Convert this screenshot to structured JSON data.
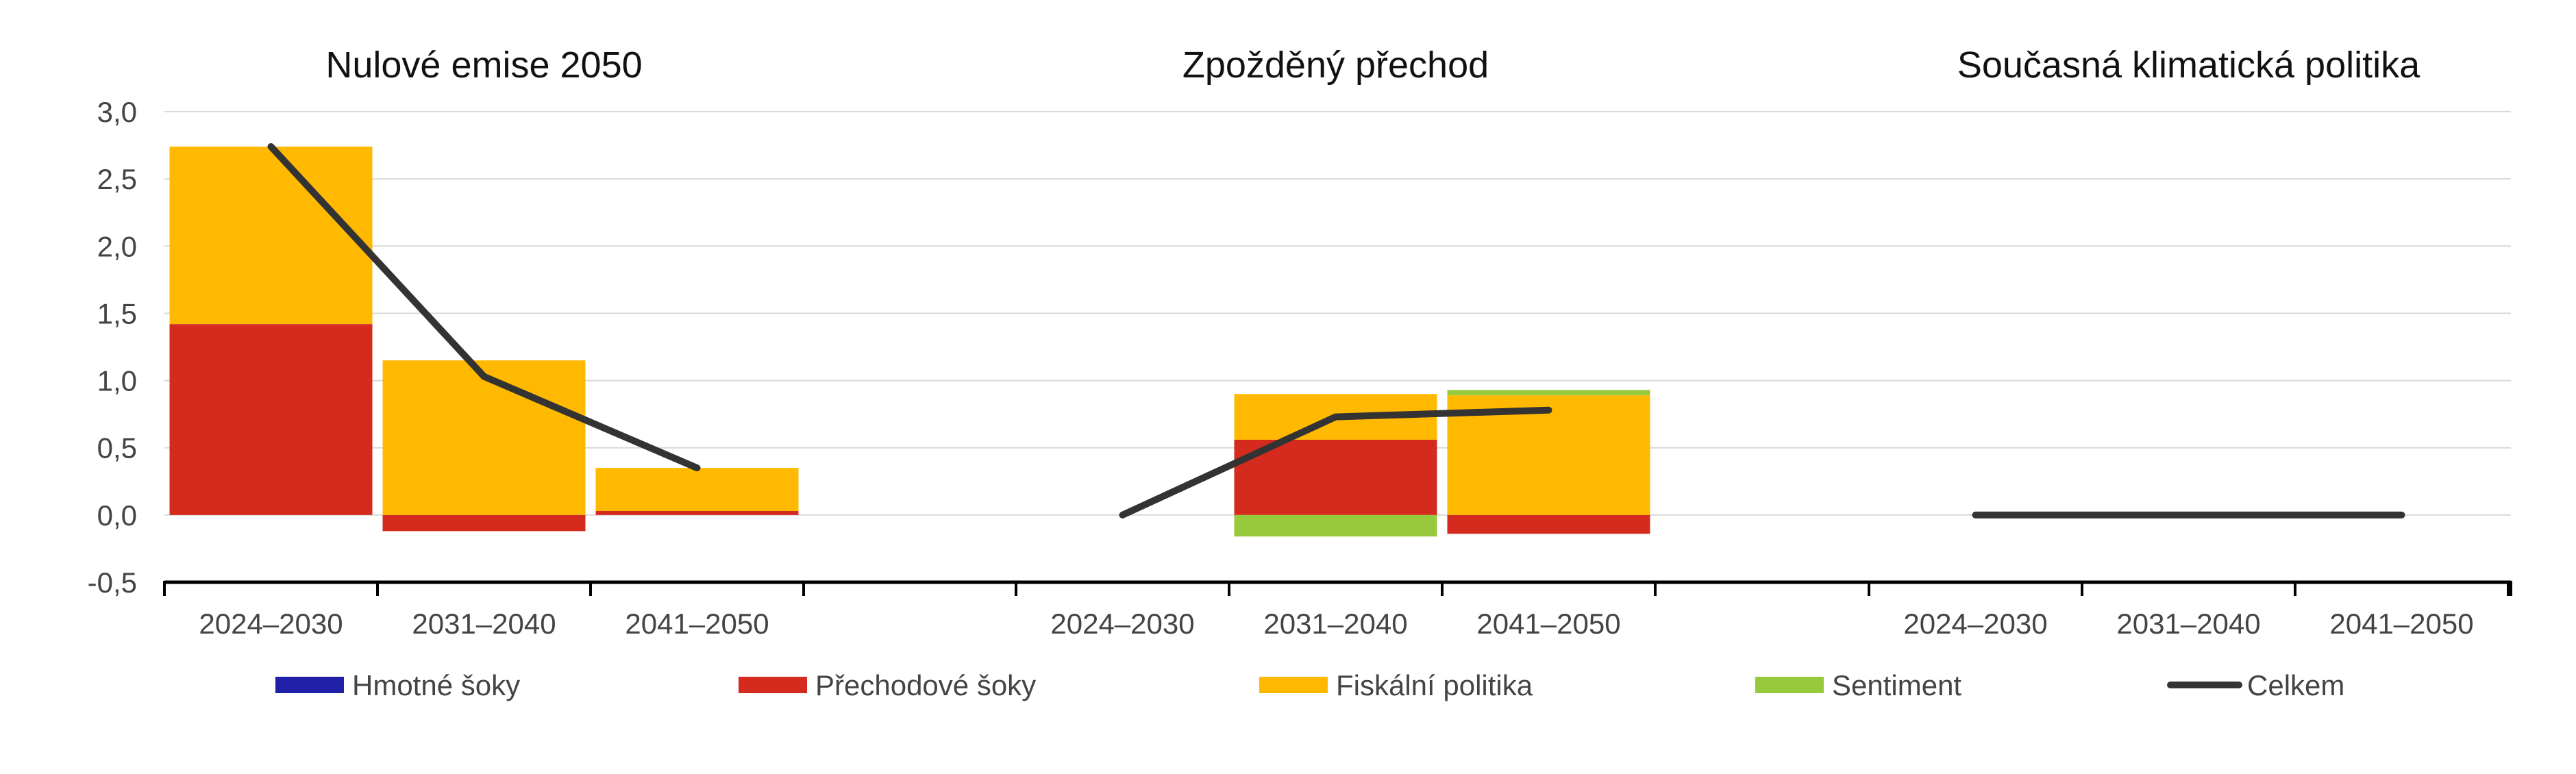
{
  "chart_data": {
    "type": "bar",
    "stacked": true,
    "grid": true,
    "legend_position": "bottom",
    "ylim": [
      -0.5,
      3.0
    ],
    "yticks": [
      "3,0",
      "2,5",
      "2,0",
      "1,5",
      "1,0",
      "0,5",
      "0,0",
      "-0,5"
    ],
    "ytick_values": [
      3.0,
      2.5,
      2.0,
      1.5,
      1.0,
      0.5,
      0.0,
      -0.5
    ],
    "categories": [
      "2024–2030",
      "2031–2040",
      "2041–2050"
    ],
    "colors": {
      "hmotne": "#1f1fa8",
      "prechodove": "#d52b1e",
      "fiskalni": "#ffb900",
      "sentiment": "#97c93d",
      "celkem": "#333333"
    },
    "legend": [
      {
        "key": "hmotne",
        "label": "Hmotné šoky",
        "kind": "bar"
      },
      {
        "key": "prechodove",
        "label": "Přechodové šoky",
        "kind": "bar"
      },
      {
        "key": "fiskalni",
        "label": "Fiskální politika",
        "kind": "bar"
      },
      {
        "key": "sentiment",
        "label": "Sentiment",
        "kind": "bar"
      },
      {
        "key": "celkem",
        "label": "Celkem",
        "kind": "line"
      }
    ],
    "panels": [
      {
        "title": "Nulové emise 2050",
        "series": [
          {
            "key": "hmotne",
            "name": "Hmotné šoky",
            "values": [
              0.0,
              0.0,
              0.0
            ]
          },
          {
            "key": "prechodove",
            "name": "Přechodové šoky",
            "values": [
              1.42,
              -0.12,
              0.03
            ]
          },
          {
            "key": "fiskalni",
            "name": "Fiskální politika",
            "values": [
              1.32,
              1.15,
              0.32
            ]
          },
          {
            "key": "sentiment",
            "name": "Sentiment",
            "values": [
              0.0,
              0.0,
              0.0
            ]
          }
        ],
        "total": [
          2.74,
          1.03,
          0.35
        ]
      },
      {
        "title": "Zpožděný přechod",
        "series": [
          {
            "key": "hmotne",
            "name": "Hmotné šoky",
            "values": [
              0.0,
              0.0,
              0.0
            ]
          },
          {
            "key": "prechodove",
            "name": "Přechodové šoky",
            "values": [
              0.0,
              0.56,
              -0.14
            ]
          },
          {
            "key": "fiskalni",
            "name": "Fiskální politika",
            "values": [
              0.0,
              0.34,
              0.89
            ]
          },
          {
            "key": "sentiment",
            "name": "Sentiment",
            "values": [
              0.0,
              -0.16,
              0.04
            ]
          }
        ],
        "total": [
          0.0,
          0.73,
          0.78
        ]
      },
      {
        "title": "Současná klimatická politika",
        "series": [
          {
            "key": "hmotne",
            "name": "Hmotné šoky",
            "values": [
              0.0,
              0.0,
              0.0
            ]
          },
          {
            "key": "prechodove",
            "name": "Přechodové šoky",
            "values": [
              0.0,
              0.0,
              0.0
            ]
          },
          {
            "key": "fiskalni",
            "name": "Fiskální politika",
            "values": [
              0.0,
              0.0,
              0.0
            ]
          },
          {
            "key": "sentiment",
            "name": "Sentiment",
            "values": [
              0.0,
              0.0,
              0.0
            ]
          }
        ],
        "total": [
          0.0,
          0.0,
          0.0
        ]
      }
    ]
  }
}
